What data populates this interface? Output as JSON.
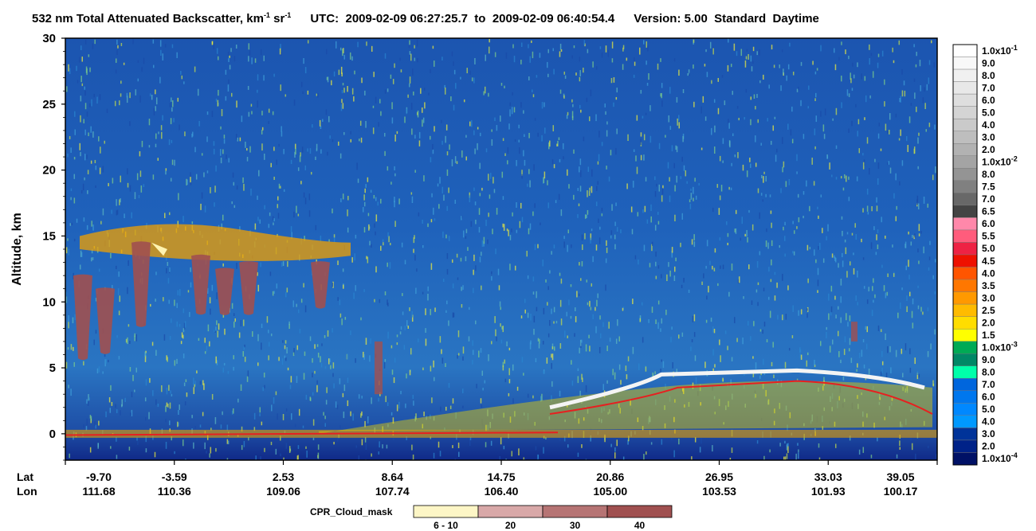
{
  "header": {
    "product": "532 nm Total Attenuated Backscatter, km",
    "product_sup1": "-1",
    "product_mid": " sr",
    "product_sup2": "-1",
    "utc_label": "UTC:",
    "utc_start": "2009-02-09 06:27:25.7",
    "to": "to",
    "utc_end": "2009-02-09 06:40:54.4",
    "version": "Version: 5.00",
    "standard": "Standard",
    "daytime": "Daytime"
  },
  "chart_data": {
    "type": "heatmap",
    "ylabel": "Altitude, km",
    "ylim": [
      -2,
      30
    ],
    "y_ticks": [
      "30",
      "25",
      "20",
      "15",
      "10",
      "5",
      "0"
    ],
    "x_rows": {
      "lat_label": "Lat",
      "lon_label": "Lon",
      "lat": [
        "-9.70",
        "-3.59",
        "2.53",
        "8.64",
        "14.75",
        "20.86",
        "26.95",
        "33.03",
        "39.05"
      ],
      "lon": [
        "111.68",
        "110.36",
        "109.06",
        "107.74",
        "106.40",
        "105.00",
        "103.53",
        "101.93",
        "100.17"
      ]
    },
    "colorbar": {
      "labels": [
        "1.0x10^-1",
        "9.0",
        "8.0",
        "7.0",
        "6.0",
        "5.0",
        "4.0",
        "3.0",
        "2.0",
        "1.0x10^-2",
        "8.0",
        "7.5",
        "7.0",
        "6.5",
        "6.0",
        "5.5",
        "5.0",
        "4.5",
        "4.0",
        "3.5",
        "3.0",
        "2.5",
        "2.0",
        "1.5",
        "1.0x10^-3",
        "9.0",
        "8.0",
        "7.0",
        "6.0",
        "5.0",
        "4.0",
        "3.0",
        "2.0",
        "1.0x10^-4"
      ],
      "colors": [
        "#ffffff",
        "#f8f8f8",
        "#f0f0f0",
        "#e8e8e8",
        "#dedede",
        "#d4d4d4",
        "#cacaca",
        "#bebebe",
        "#b2b2b2",
        "#a4a4a4",
        "#949494",
        "#808080",
        "#686868",
        "#444444",
        "#ff88aa",
        "#ff5c7c",
        "#ee2244",
        "#ee1100",
        "#ff5500",
        "#ff7700",
        "#ff9900",
        "#ffbb00",
        "#ffdd00",
        "#ffff00",
        "#00aa55",
        "#008866",
        "#00ffaa",
        "#0066dd",
        "#0077ee",
        "#0088ff",
        "#0099ff",
        "#003399",
        "#002288",
        "#001166"
      ]
    },
    "cpr_cloud_mask": {
      "title": "CPR_Cloud_mask",
      "labels": [
        "6 - 10",
        "20",
        "30",
        "40"
      ],
      "colors": [
        "#fdf6c6",
        "#d8a8a8",
        "#b67474",
        "#a05050"
      ]
    }
  }
}
